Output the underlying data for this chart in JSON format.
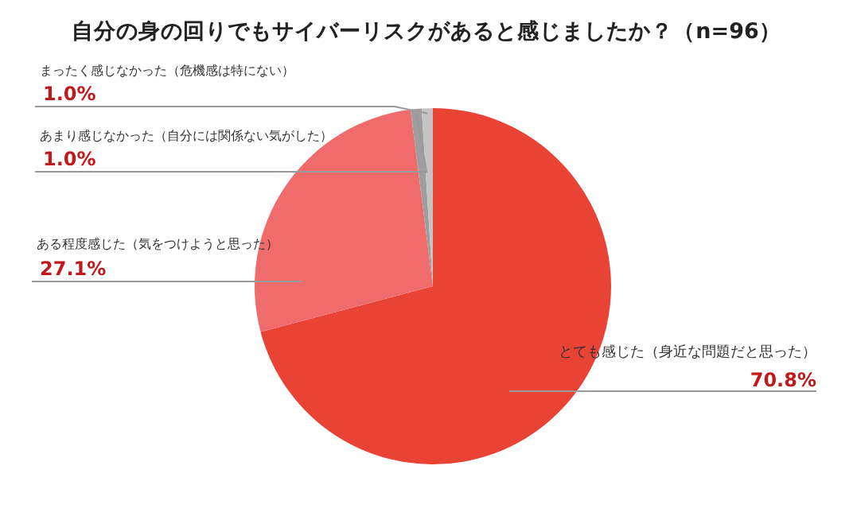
{
  "chart_data": {
    "type": "pie",
    "title": "自分の身の回りでもサイバーリスクがあると感じましたか？（n=96）",
    "categories": [
      "とても感じた（身近な問題だと思った）",
      "ある程度感じた（気をつけようと思った）",
      "あまり感じなかった（自分には関係ない気がした）",
      "まったく感じなかった（危機感は特にない）"
    ],
    "values": [
      70.8,
      27.1,
      1.0,
      1.0
    ],
    "colors": [
      "#e84335",
      "#f06b6b",
      "#9e9e9e",
      "#c4c4c4"
    ],
    "value_labels": [
      "70.8%",
      "27.1%",
      "1.0%",
      "1.0%"
    ],
    "legend": false
  }
}
